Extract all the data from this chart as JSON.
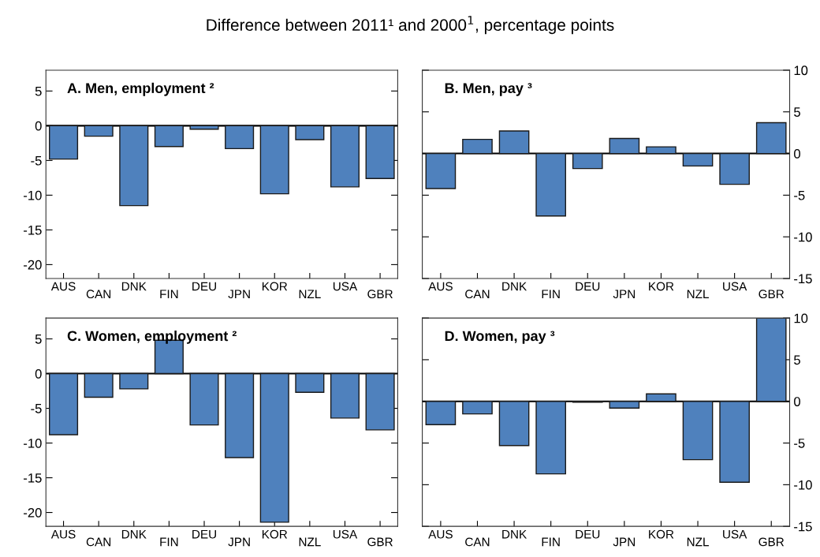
{
  "chart_data": [
    {
      "type": "bar",
      "title": "A. Men, employment ²",
      "annotations": [
        "Difference between 2011¹ and 2000$^{1}$, percentage points"
      ],
      "categories": [
        "AUS",
        "CAN",
        "DNK",
        "FIN",
        "DEU",
        "JPN",
        "KOR",
        "NZL",
        "USA",
        "GBR"
      ],
      "color": "#4f81bd",
      "values": [
        -4.8,
        -1.5,
        -11.5,
        -3.0,
        -0.5,
        -3.3,
        -9.8,
        -2.0,
        -8.8,
        -7.6
      ],
      "ylim": [
        -22,
        8
      ],
      "yticks": [
        -20,
        -15,
        -10,
        -5,
        0,
        5
      ],
      "ref_lines": [
        {
          "axis": "y",
          "value": 0,
          "color": "#000000"
        }
      ],
      "grid": false,
      "legend": false
    },
    {
      "type": "bar",
      "title": "B. Men, pay ³",
      "categories": [
        "AUS",
        "CAN",
        "DNK",
        "FIN",
        "DEU",
        "JPN",
        "KOR",
        "NZL",
        "USA",
        "GBR"
      ],
      "color": "#4f81bd",
      "values": [
        -4.2,
        1.7,
        2.7,
        -7.5,
        -1.8,
        1.8,
        0.8,
        -1.5,
        -3.7,
        3.7
      ],
      "ylim": [
        -15,
        10
      ],
      "yticks": [
        -15,
        -10,
        -5,
        0,
        5,
        10
      ],
      "ref_lines": [
        {
          "axis": "y",
          "value": 0,
          "color": "#000000"
        }
      ],
      "grid": false,
      "legend": false
    },
    {
      "type": "bar",
      "title": "C. Women, employment ²",
      "categories": [
        "AUS",
        "CAN",
        "DNK",
        "FIN",
        "DEU",
        "JPN",
        "KOR",
        "NZL",
        "USA",
        "GBR"
      ],
      "color": "#4f81bd",
      "values": [
        -8.8,
        -3.4,
        -2.2,
        4.8,
        -7.4,
        -12.1,
        -21.4,
        -2.7,
        -6.4,
        -8.1
      ],
      "ylim": [
        -22,
        8
      ],
      "yticks": [
        -20,
        -15,
        -10,
        -5,
        0,
        5
      ],
      "ref_lines": [
        {
          "axis": "y",
          "value": 0,
          "color": "#000000"
        }
      ],
      "grid": false,
      "legend": false
    },
    {
      "type": "bar",
      "title": "D. Women, pay ³",
      "categories": [
        "AUS",
        "CAN",
        "DNK",
        "FIN",
        "DEU",
        "JPN",
        "KOR",
        "NZL",
        "USA",
        "GBR"
      ],
      "color": "#4f81bd",
      "values": [
        -2.8,
        -1.5,
        -5.3,
        -8.7,
        -0.1,
        -0.8,
        0.9,
        -7.0,
        -9.7,
        10
      ],
      "ylim": [
        -15,
        10
      ],
      "yticks": [
        -15,
        -10,
        -5,
        0,
        5,
        10
      ],
      "ref_lines": [
        {
          "axis": "y",
          "value": 0,
          "color": "#000000"
        }
      ],
      "grid": false,
      "legend": false
    }
  ]
}
